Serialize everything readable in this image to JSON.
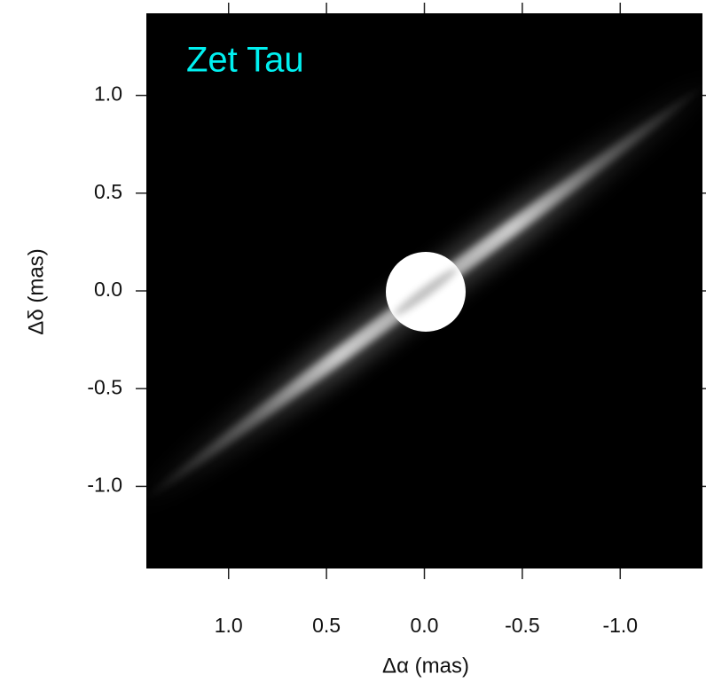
{
  "chart_data": {
    "type": "image",
    "annotation": "Zet Tau",
    "annotation_color": "#00f0f0",
    "xlabel": "Δα (mas)",
    "ylabel": "Δδ (mas)",
    "xlim": [
      1.42,
      -1.42
    ],
    "ylim": [
      -1.42,
      1.42
    ],
    "xticks": [
      {
        "value": 1,
        "label": "1.0"
      },
      0.5,
      {
        "value": 0,
        "label": "0.0"
      },
      -0.5,
      {
        "value": -1,
        "label": "-1.0"
      }
    ],
    "yticks": [
      {
        "value": -1,
        "label": "-1.0"
      },
      -0.5,
      {
        "value": 0,
        "label": "0.0"
      },
      0.5,
      {
        "value": 1,
        "label": "1.0"
      }
    ]
  }
}
